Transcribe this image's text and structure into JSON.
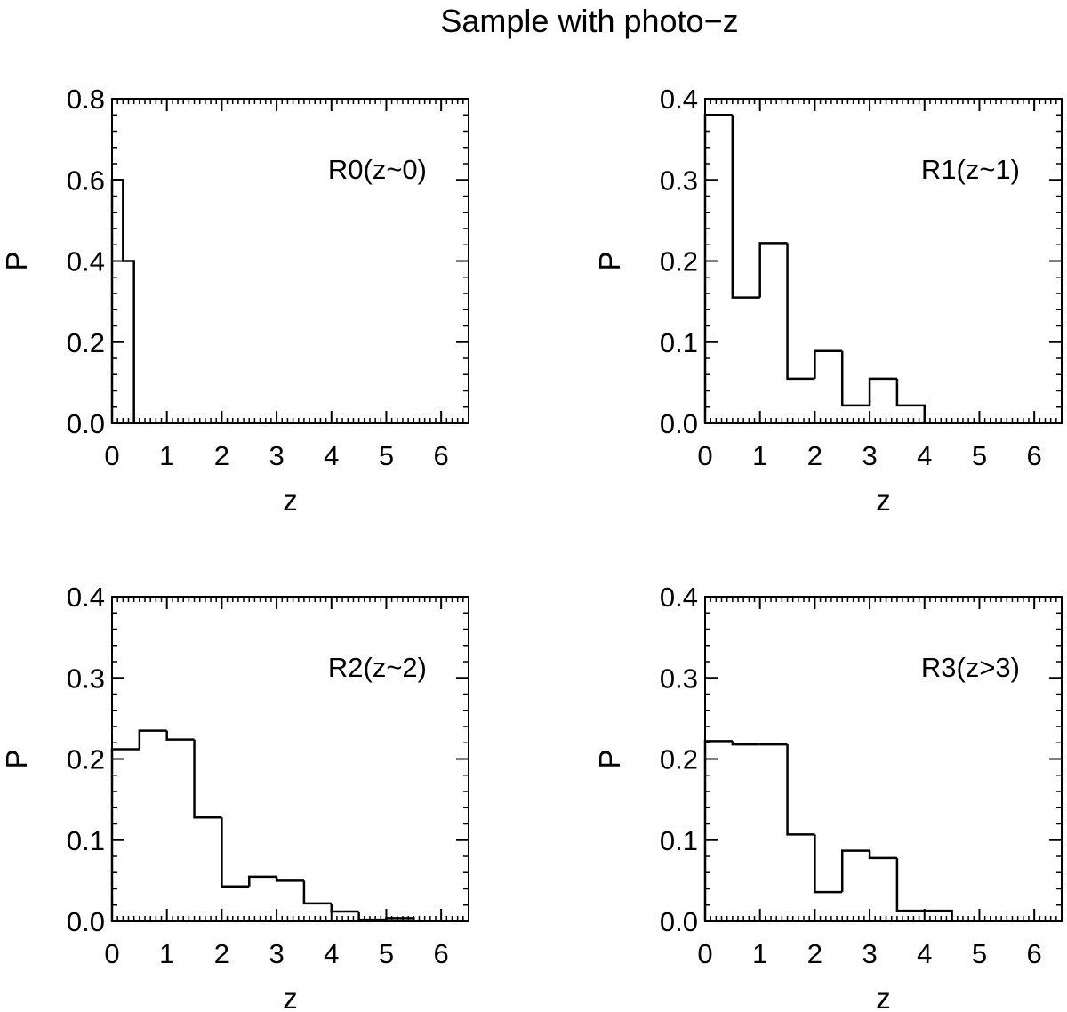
{
  "figure": {
    "title": "Sample with photo−z"
  },
  "chart_data": [
    {
      "type": "bar",
      "style": "step-histogram",
      "annotation": "R0(z~0)",
      "xlabel": "z",
      "ylabel": "P",
      "xlim": [
        0,
        6.5
      ],
      "ylim": [
        0,
        0.8
      ],
      "xticks": [
        "0",
        "1",
        "2",
        "3",
        "4",
        "5",
        "6"
      ],
      "yticks": [
        "0.0",
        "0.2",
        "0.4",
        "0.6",
        "0.8"
      ],
      "bin_edges": [
        0,
        0.2,
        0.4
      ],
      "values": [
        0.6,
        0.4
      ]
    },
    {
      "type": "bar",
      "style": "step-histogram",
      "annotation": "R1(z~1)",
      "xlabel": "z",
      "ylabel": "P",
      "xlim": [
        0,
        6.5
      ],
      "ylim": [
        0,
        0.4
      ],
      "xticks": [
        "0",
        "1",
        "2",
        "3",
        "4",
        "5",
        "6"
      ],
      "yticks": [
        "0.0",
        "0.1",
        "0.2",
        "0.3",
        "0.4"
      ],
      "bin_edges": [
        0,
        0.5,
        1.0,
        1.5,
        2.0,
        2.5,
        3.0,
        3.5,
        4.0
      ],
      "values": [
        0.38,
        0.155,
        0.222,
        0.055,
        0.089,
        0.022,
        0.055,
        0.022
      ]
    },
    {
      "type": "bar",
      "style": "step-histogram",
      "annotation": "R2(z~2)",
      "xlabel": "z",
      "ylabel": "P",
      "xlim": [
        0,
        6.5
      ],
      "ylim": [
        0,
        0.4
      ],
      "xticks": [
        "0",
        "1",
        "2",
        "3",
        "4",
        "5",
        "6"
      ],
      "yticks": [
        "0.0",
        "0.1",
        "0.2",
        "0.3",
        "0.4"
      ],
      "bin_edges": [
        0,
        0.5,
        1.0,
        1.5,
        2.0,
        2.5,
        3.0,
        3.5,
        4.0,
        4.5,
        5.0,
        5.5
      ],
      "values": [
        0.212,
        0.235,
        0.224,
        0.128,
        0.043,
        0.055,
        0.05,
        0.022,
        0.012,
        0.002,
        0.004
      ]
    },
    {
      "type": "bar",
      "style": "step-histogram",
      "annotation": "R3(z>3)",
      "xlabel": "z",
      "ylabel": "P",
      "xlim": [
        0,
        6.5
      ],
      "ylim": [
        0,
        0.4
      ],
      "xticks": [
        "0",
        "1",
        "2",
        "3",
        "4",
        "5",
        "6"
      ],
      "yticks": [
        "0.0",
        "0.1",
        "0.2",
        "0.3",
        "0.4"
      ],
      "bin_edges": [
        0,
        0.5,
        1.0,
        1.5,
        2.0,
        2.5,
        3.0,
        3.5,
        4.0,
        4.5
      ],
      "values": [
        0.222,
        0.218,
        0.218,
        0.107,
        0.036,
        0.087,
        0.078,
        0.013,
        0.013
      ]
    }
  ]
}
